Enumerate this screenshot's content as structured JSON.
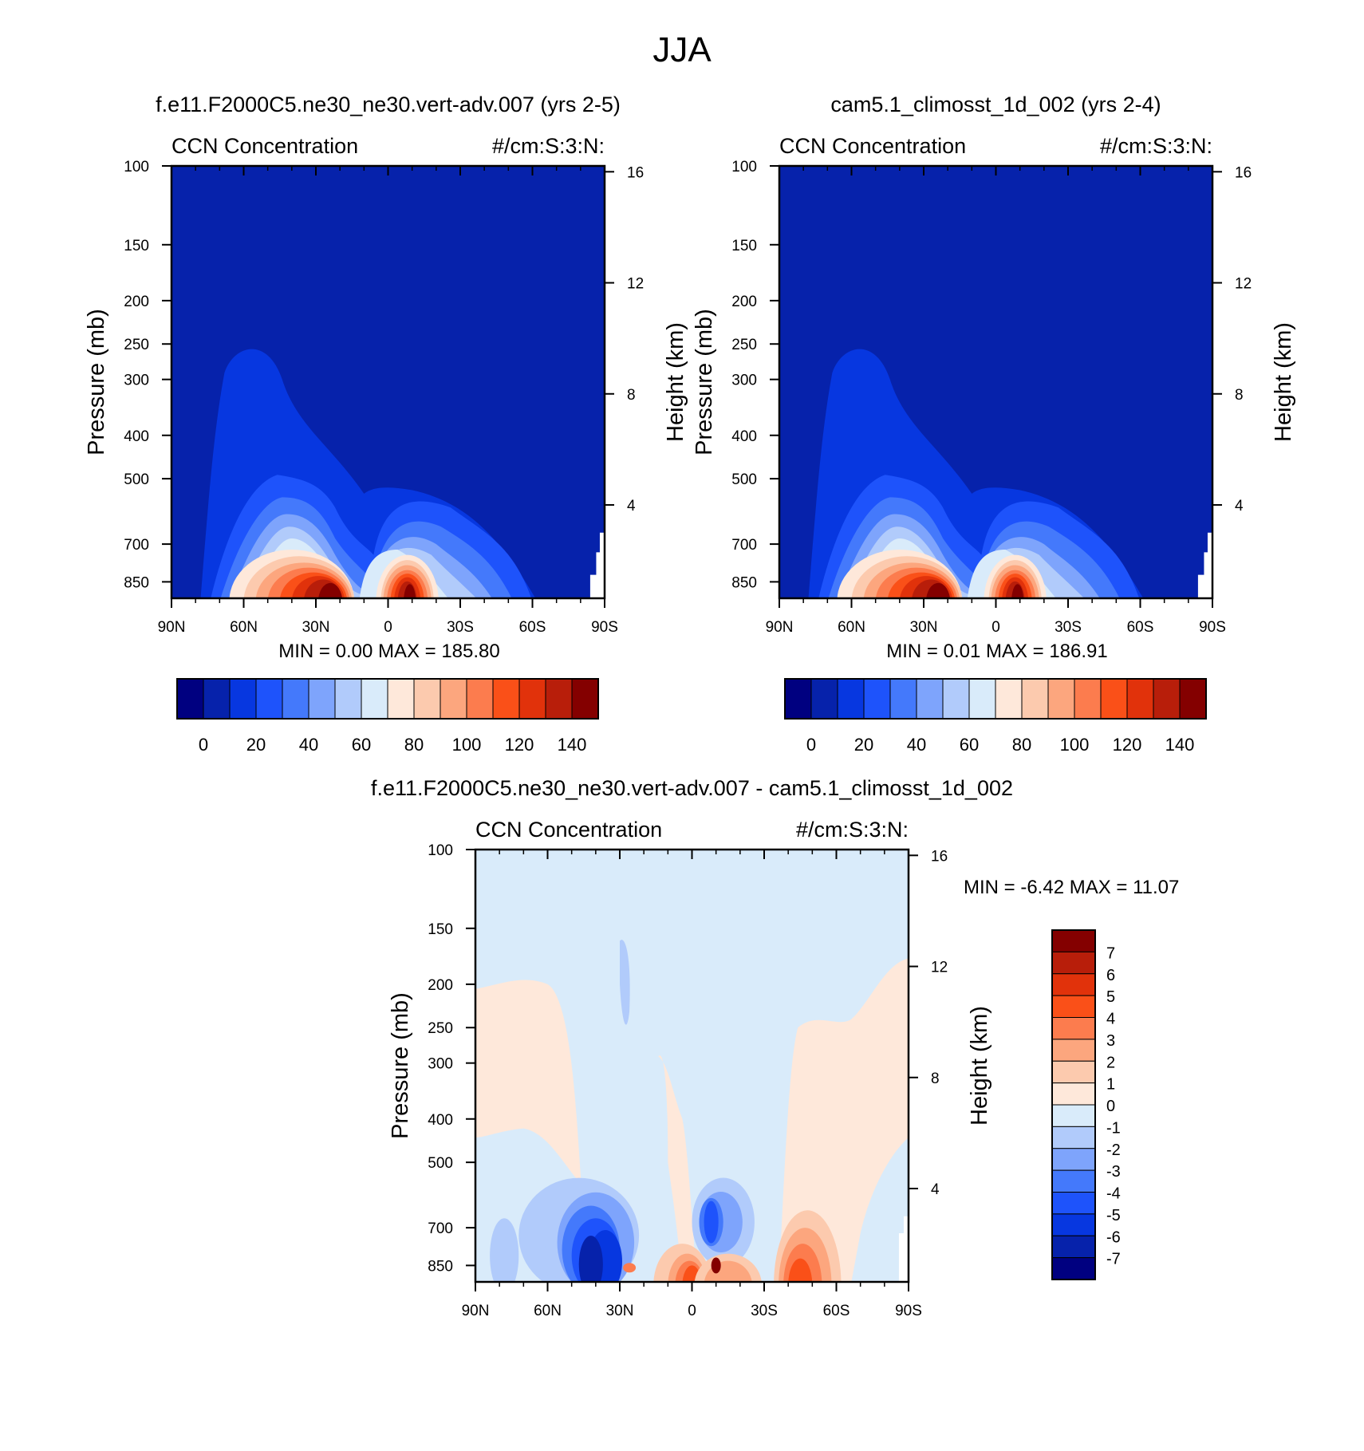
{
  "title": "JJA",
  "colors": {
    "abs_levels": [
      "#000080",
      "#0622ab",
      "#0737e0",
      "#1e53fb",
      "#4479fb",
      "#7ea4fc",
      "#b1cbfb",
      "#d9ebfa",
      "#fee8da",
      "#fccaae",
      "#fca67e",
      "#fc7c4e",
      "#fa5018",
      "#e1320b",
      "#b81e0a",
      "#840000"
    ],
    "diff_levels": [
      "#000080",
      "#0622ab",
      "#0737e0",
      "#1e53fb",
      "#4479fb",
      "#7ea4fc",
      "#b1cbfb",
      "#d9ebfa",
      "#fee8da",
      "#fccaae",
      "#fca67e",
      "#fc7c4e",
      "#fa5018",
      "#e1320b",
      "#b81e0a",
      "#840000"
    ]
  },
  "chart_data": [
    {
      "type": "contour",
      "title": "f.e11.F2000C5.ne30_ne30.vert-adv.007 (yrs 2-5)",
      "left_label": "CCN Concentration",
      "right_label": "#/cm:S:3:N:",
      "ylabel": "Pressure (mb)",
      "y2label": "Height (km)",
      "xticks": [
        "90N",
        "60N",
        "30N",
        "0",
        "30S",
        "60S",
        "90S"
      ],
      "yticks": [
        "100",
        "150",
        "200",
        "250",
        "300",
        "400",
        "500",
        "700",
        "850"
      ],
      "y2ticks": [
        "16",
        "12",
        "8",
        "4"
      ],
      "min_label": "MIN =",
      "min_value": "0.00",
      "max_label": "MAX = 185.80",
      "colorbar_labels": [
        "0",
        "20",
        "40",
        "60",
        "80",
        "100",
        "120",
        "140"
      ]
    },
    {
      "type": "contour",
      "title": "cam5.1_climosst_1d_002 (yrs 2-4)",
      "left_label": "CCN Concentration",
      "right_label": "#/cm:S:3:N:",
      "ylabel": "Pressure (mb)",
      "y2label": "Height (km)",
      "xticks": [
        "90N",
        "60N",
        "30N",
        "0",
        "30S",
        "60S",
        "90S"
      ],
      "yticks": [
        "100",
        "150",
        "200",
        "250",
        "300",
        "400",
        "500",
        "700",
        "850"
      ],
      "y2ticks": [
        "16",
        "12",
        "8",
        "4"
      ],
      "min_label": "MIN =",
      "min_value": "0.01",
      "max_label": "MAX = 186.91",
      "colorbar_labels": [
        "0",
        "20",
        "40",
        "60",
        "80",
        "100",
        "120",
        "140"
      ]
    },
    {
      "type": "contour",
      "title": "f.e11.F2000C5.ne30_ne30.vert-adv.007 - cam5.1_climosst_1d_002",
      "left_label": "CCN Concentration",
      "right_label": "#/cm:S:3:N:",
      "ylabel": "Pressure (mb)",
      "y2label": "Height (km)",
      "xticks": [
        "90N",
        "60N",
        "30N",
        "0",
        "30S",
        "60S",
        "90S"
      ],
      "yticks": [
        "100",
        "150",
        "200",
        "250",
        "300",
        "400",
        "500",
        "700",
        "850"
      ],
      "y2ticks": [
        "16",
        "12",
        "8",
        "4"
      ],
      "min_label": "MIN =",
      "min_value": "-6.42",
      "max_label": "MAX =",
      "max_value": "11.07",
      "colorbar_labels": [
        "7",
        "6",
        "5",
        "4",
        "3",
        "2",
        "1",
        "0",
        "-1",
        "-2",
        "-3",
        "-4",
        "-5",
        "-6",
        "-7"
      ]
    }
  ]
}
